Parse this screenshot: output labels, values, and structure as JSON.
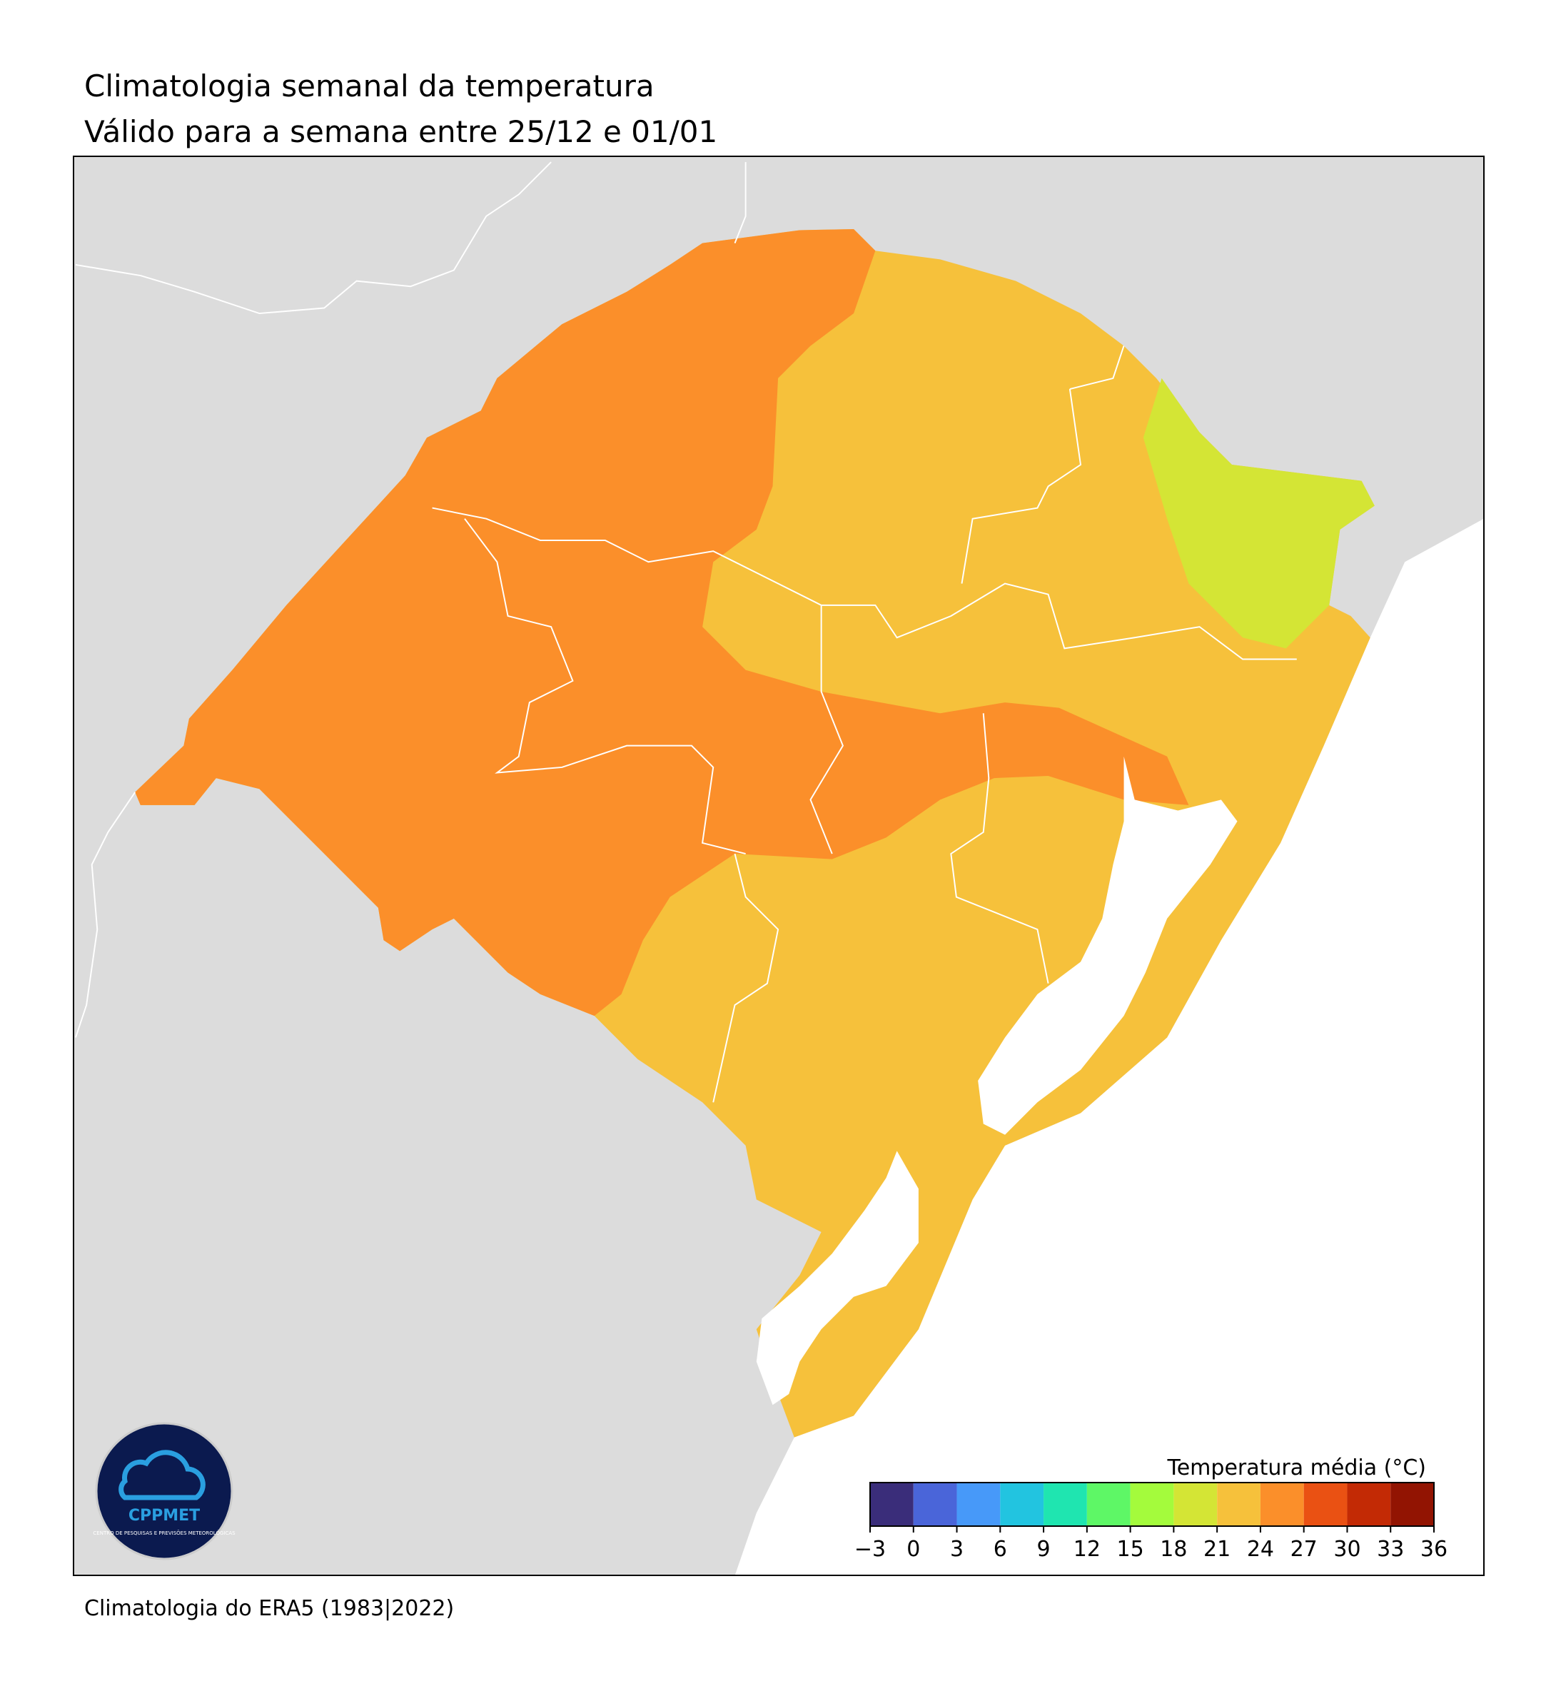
{
  "map": {
    "title": "Climatologia semanal da temperatura",
    "subtitle": "Válido para a semana entre 25/12 e 01/01",
    "footer": "Climatologia do ERA5 (1983|2022)",
    "logo": {
      "name": "CPPMET",
      "caption": "CENTRO DE PESQUISAS E PREVISÕES METEOROLÓGICAS"
    },
    "colorbar": {
      "label": "Temperatura média (°C)",
      "ticks": [
        {
          "value": -3,
          "label": "−3"
        },
        0,
        3,
        6,
        9,
        12,
        15,
        18,
        21,
        24,
        27,
        30,
        33,
        36
      ],
      "colors": [
        "#3a2d7a",
        "#4a65d9",
        "#4799f9",
        "#22c4e0",
        "#1fe5b0",
        "#5ef766",
        "#a4fb3c",
        "#d4e535",
        "#f6c13b",
        "#fb8f2a",
        "#ea5113",
        "#c32a05",
        "#921402"
      ]
    }
  }
}
